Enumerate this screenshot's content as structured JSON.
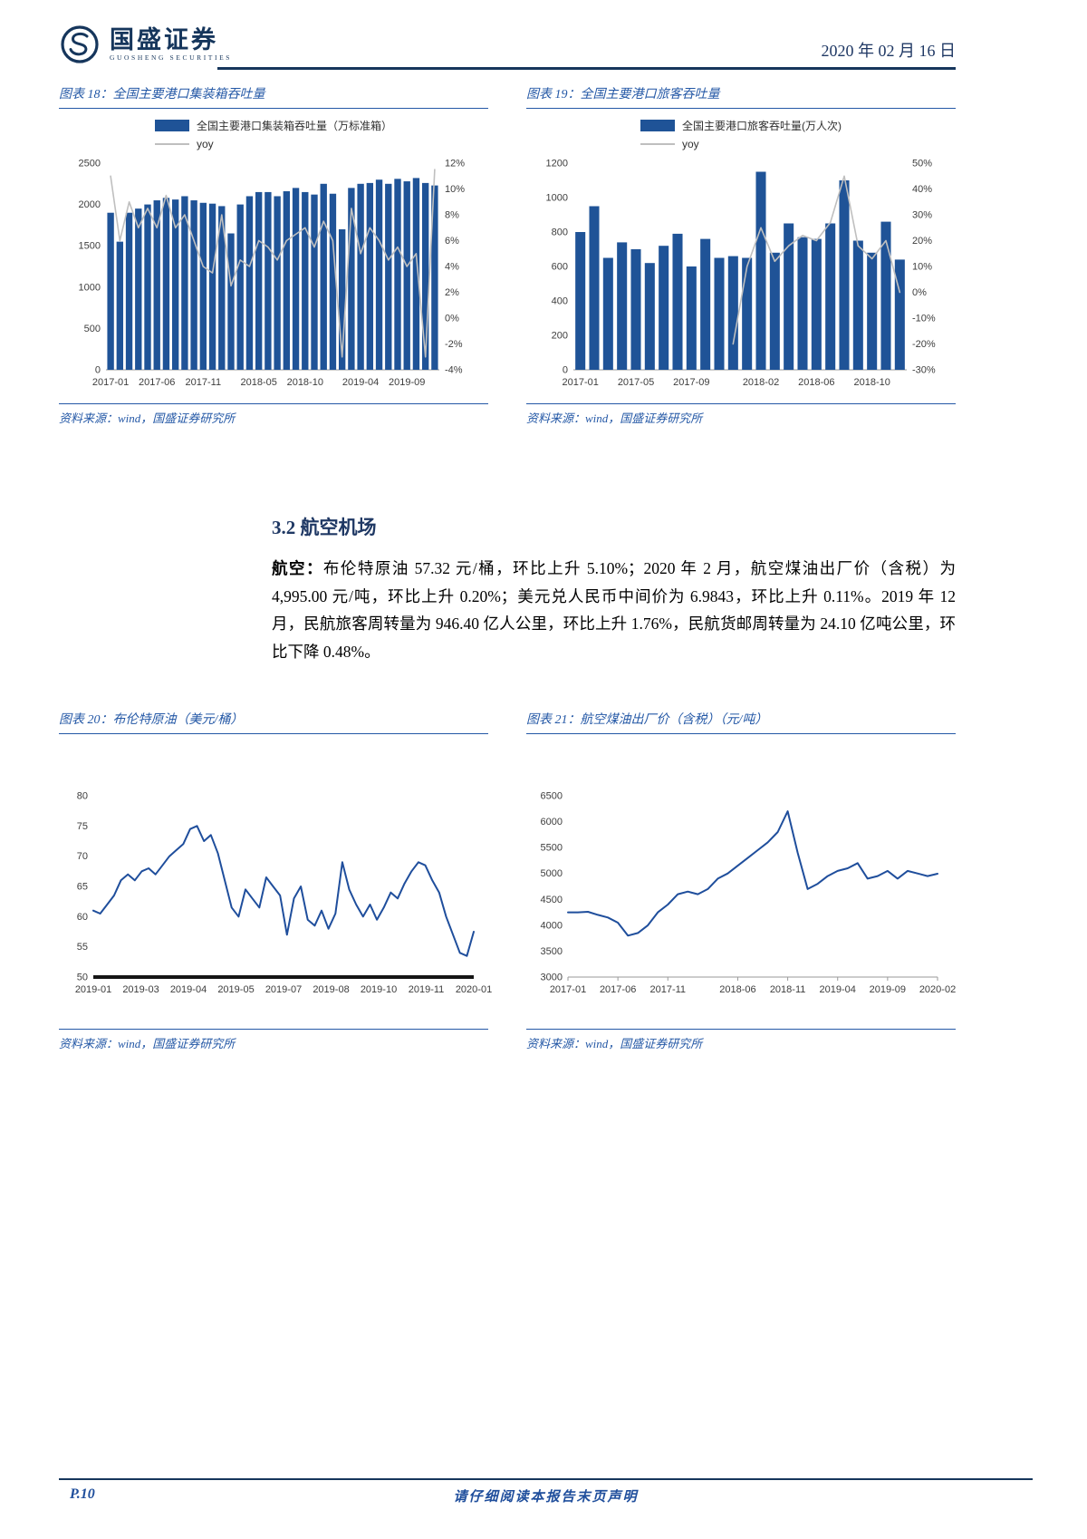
{
  "header": {
    "brand": "国盛证券",
    "brand_sub": "GUOSHENG SECURITIES",
    "date": "2020 年 02 月 16 日"
  },
  "figures": [
    {
      "title": "图表 18：全国主要港口集装箱吞吐量",
      "source": "资料来源：wind，国盛证券研究所"
    },
    {
      "title": "图表 19：全国主要港口旅客吞吐量",
      "source": "资料来源：wind，国盛证券研究所"
    },
    {
      "title": "图表 20：布伦特原油（美元/桶）",
      "source": "资料来源：wind，国盛证券研究所"
    },
    {
      "title": "图表 21：航空煤油出厂价（含税）（元/吨）",
      "source": "资料来源：wind，国盛证券研究所"
    }
  ],
  "section": {
    "heading": "3.2 航空机场",
    "lead": "航空：",
    "body": "布伦特原油 57.32 元/桶，环比上升 5.10%；2020 年 2 月，航空煤油出厂价（含税）为 4,995.00 元/吨，环比上升 0.20%；美元兑人民币中间价为 6.9843，环比上升 0.11%。2019 年 12 月，民航旅客周转量为 946.40 亿人公里，环比上升 1.76%，民航货邮周转量为 24.10 亿吨公里，环比下降 0.48%。"
  },
  "footer": {
    "page": "P.10",
    "disclaimer": "请仔细阅读本报告末页声明"
  },
  "colors": {
    "brand": "#16365c",
    "accent": "#2458a6",
    "bar": "#1f5397",
    "yoy_line": "#bfbfbf",
    "line": "#1f4e9c"
  },
  "chart_data": [
    {
      "id": "port-container-throughput",
      "type": "bar+line",
      "title": "全国主要港口集装箱吞吐量",
      "legend_bar": "全国主要港口集装箱吞吐量（万标准箱）",
      "legend_line": "yoy",
      "unit": "万标准箱",
      "categories": [
        "2017-01",
        "2017-02",
        "2017-03",
        "2017-04",
        "2017-05",
        "2017-06",
        "2017-07",
        "2017-08",
        "2017-09",
        "2017-10",
        "2017-11",
        "2017-12",
        "2018-01",
        "2018-02",
        "2018-03",
        "2018-04",
        "2018-05",
        "2018-06",
        "2018-07",
        "2018-08",
        "2018-09",
        "2018-10",
        "2018-11",
        "2018-12",
        "2019-01",
        "2019-02",
        "2019-03",
        "2019-04",
        "2019-05",
        "2019-06",
        "2019-07",
        "2019-08",
        "2019-09",
        "2019-10",
        "2019-11",
        "2019-12"
      ],
      "bar_values": [
        1900,
        1550,
        1900,
        1950,
        2000,
        2050,
        2080,
        2060,
        2100,
        2050,
        2020,
        2010,
        1980,
        1650,
        2000,
        2100,
        2150,
        2150,
        2100,
        2160,
        2200,
        2150,
        2120,
        2250,
        2130,
        1700,
        2200,
        2250,
        2260,
        2300,
        2250,
        2310,
        2280,
        2320,
        2260,
        2230
      ],
      "line_values": [
        11,
        6,
        9,
        7,
        8.5,
        7,
        9.5,
        7,
        8,
        6,
        4,
        3.5,
        8,
        2.5,
        4.5,
        4,
        6,
        5.5,
        4.5,
        6,
        6.5,
        7,
        5.5,
        7.5,
        6,
        -3,
        8.5,
        5,
        7,
        6,
        4.5,
        5.5,
        4,
        5,
        -3,
        11.5
      ],
      "y_left": {
        "min": 0,
        "max": 2500,
        "step": 500
      },
      "y_right": {
        "min": -4,
        "max": 12,
        "step": 2,
        "suffix": "%"
      },
      "x_ticks": [
        {
          "label": "2017-01",
          "index": 0
        },
        {
          "label": "2017-06",
          "index": 5
        },
        {
          "label": "2017-11",
          "index": 10
        },
        {
          "label": "2018-05",
          "index": 16
        },
        {
          "label": "2018-10",
          "index": 21
        },
        {
          "label": "2019-04",
          "index": 27
        },
        {
          "label": "2019-09",
          "index": 32
        }
      ],
      "line_color": "gray",
      "margins": {
        "l": 52,
        "r": 54,
        "t": 8,
        "b": 32
      }
    },
    {
      "id": "port-passenger-throughput",
      "type": "bar+line",
      "title": "全国主要港口旅客吞吐量",
      "legend_bar": "全国主要港口旅客吞吐量(万人次)",
      "legend_line": "yoy",
      "unit": "万人次",
      "categories": [
        "2017-01",
        "2017-02",
        "2017-03",
        "2017-04",
        "2017-05",
        "2017-06",
        "2017-07",
        "2017-08",
        "2017-09",
        "2017-10",
        "2017-11",
        "2017-12",
        "2018-01",
        "2018-02",
        "2018-03",
        "2018-04",
        "2018-05",
        "2018-06",
        "2018-07",
        "2018-08",
        "2018-09",
        "2018-10",
        "2018-11",
        "2018-12"
      ],
      "bar_values": [
        800,
        950,
        650,
        740,
        700,
        620,
        720,
        790,
        600,
        760,
        650,
        660,
        650,
        1150,
        680,
        850,
        770,
        760,
        850,
        1100,
        750,
        680,
        860,
        640
      ],
      "line_values": [
        null,
        null,
        null,
        null,
        null,
        null,
        null,
        null,
        null,
        null,
        null,
        -20,
        10,
        25,
        12,
        18,
        22,
        20,
        27,
        45,
        18,
        13,
        20,
        0
      ],
      "y_left": {
        "min": 0,
        "max": 1200,
        "step": 200
      },
      "y_right": {
        "min": -30,
        "max": 50,
        "step": 10,
        "suffix": "%"
      },
      "x_ticks": [
        {
          "label": "2017-01",
          "index": 0
        },
        {
          "label": "2017-05",
          "index": 4
        },
        {
          "label": "2017-09",
          "index": 8
        },
        {
          "label": "2018-02",
          "index": 13
        },
        {
          "label": "2018-06",
          "index": 17
        },
        {
          "label": "2018-10",
          "index": 21
        }
      ],
      "line_color": "gray",
      "margins": {
        "l": 52,
        "r": 54,
        "t": 8,
        "b": 32
      }
    },
    {
      "id": "brent-crude",
      "type": "line",
      "title": "布伦特原油（美元/桶）",
      "unit": "美元/桶",
      "values": [
        61,
        60.5,
        62,
        63.5,
        66,
        67,
        66,
        67.5,
        68,
        67,
        68.5,
        70,
        71,
        72,
        74.5,
        75,
        72.5,
        73.5,
        70.5,
        66,
        61.5,
        60,
        64.5,
        63,
        61.5,
        66.5,
        65,
        63.5,
        57,
        63,
        65,
        59.5,
        58.5,
        61,
        58,
        60.5,
        69,
        64.5,
        62,
        60,
        62,
        59.5,
        61.5,
        64,
        63,
        65.5,
        67.5,
        69,
        68.5,
        66,
        64,
        60,
        57,
        54,
        53.5,
        57.5
      ],
      "y_left": {
        "min": 50,
        "max": 80,
        "step": 5
      },
      "x_ticks": [
        {
          "label": "2019-01",
          "pos": 0
        },
        {
          "label": "2019-03",
          "pos": 0.125
        },
        {
          "label": "2019-04",
          "pos": 0.25
        },
        {
          "label": "2019-05",
          "pos": 0.375
        },
        {
          "label": "2019-07",
          "pos": 0.5
        },
        {
          "label": "2019-08",
          "pos": 0.625
        },
        {
          "label": "2019-10",
          "pos": 0.75
        },
        {
          "label": "2019-11",
          "pos": 0.875
        },
        {
          "label": "2020-01",
          "pos": 1
        }
      ],
      "baseline": "thick",
      "margins": {
        "l": 38,
        "r": 16,
        "t": 10,
        "b": 30
      }
    },
    {
      "id": "jet-fuel-price",
      "type": "line",
      "title": "航空煤油出厂价（含税）（元/吨）",
      "unit": "元/吨",
      "categories": [
        "2017-01",
        "2017-02",
        "2017-03",
        "2017-04",
        "2017-05",
        "2017-06",
        "2017-07",
        "2017-08",
        "2017-09",
        "2017-10",
        "2017-11",
        "2017-12",
        "2018-01",
        "2018-02",
        "2018-03",
        "2018-04",
        "2018-05",
        "2018-06",
        "2018-07",
        "2018-08",
        "2018-09",
        "2018-10",
        "2018-11",
        "2018-12",
        "2019-01",
        "2019-02",
        "2019-03",
        "2019-04",
        "2019-05",
        "2019-06",
        "2019-07",
        "2019-08",
        "2019-09",
        "2019-10",
        "2019-11",
        "2019-12",
        "2020-01",
        "2020-02"
      ],
      "values": [
        4250,
        4250,
        4260,
        4200,
        4150,
        4050,
        3800,
        3850,
        4000,
        4250,
        4400,
        4600,
        4650,
        4600,
        4700,
        4900,
        5000,
        5150,
        5300,
        5450,
        5600,
        5800,
        6200,
        5400,
        4700,
        4800,
        4950,
        5050,
        5100,
        5200,
        4900,
        4950,
        5050,
        4900,
        5050,
        5000,
        4950,
        4995
      ],
      "y_left": {
        "min": 3000,
        "max": 6500,
        "step": 500
      },
      "x_ticks": [
        {
          "label": "2017-01",
          "index": 0
        },
        {
          "label": "2017-06",
          "index": 5
        },
        {
          "label": "2017-11",
          "index": 10
        },
        {
          "label": "2018-06",
          "index": 17
        },
        {
          "label": "2018-11",
          "index": 22
        },
        {
          "label": "2019-04",
          "index": 27
        },
        {
          "label": "2019-09",
          "index": 32
        },
        {
          "label": "2020-02",
          "index": 37
        }
      ],
      "tick_marks": true,
      "margins": {
        "l": 46,
        "r": 20,
        "t": 10,
        "b": 30
      }
    }
  ]
}
